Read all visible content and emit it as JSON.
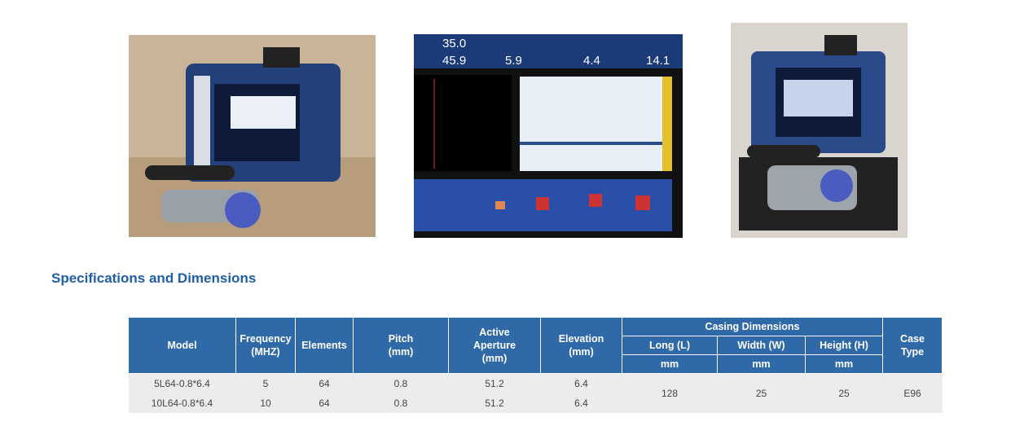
{
  "header": {
    "title": "Specifications and Dimensions"
  },
  "screen": {
    "readings": [
      "35.0",
      "45.9",
      "5.9",
      "4.4",
      "14.1"
    ]
  },
  "table": {
    "columns": [
      "Model",
      "Frequency\n(MHZ)",
      "Elements",
      "Pitch\n(mm)",
      "Active\nAperture\n(mm)",
      "Elevation\n(mm)"
    ],
    "group": "Casing Dimensions",
    "subcolumns": [
      "Long (L)",
      "Width (W)",
      "Height (H)"
    ],
    "units": [
      "mm",
      "mm",
      "mm"
    ],
    "last": "Case\nType",
    "rows": [
      [
        "5L64-0.8*6.4",
        "5",
        "64",
        "0.8",
        "51.2",
        "6.4"
      ],
      [
        "10L64-0.8*6.4",
        "10",
        "64",
        "0.8",
        "51.2",
        "6.4"
      ]
    ],
    "shared": [
      "128",
      "25",
      "25",
      "E96"
    ]
  }
}
